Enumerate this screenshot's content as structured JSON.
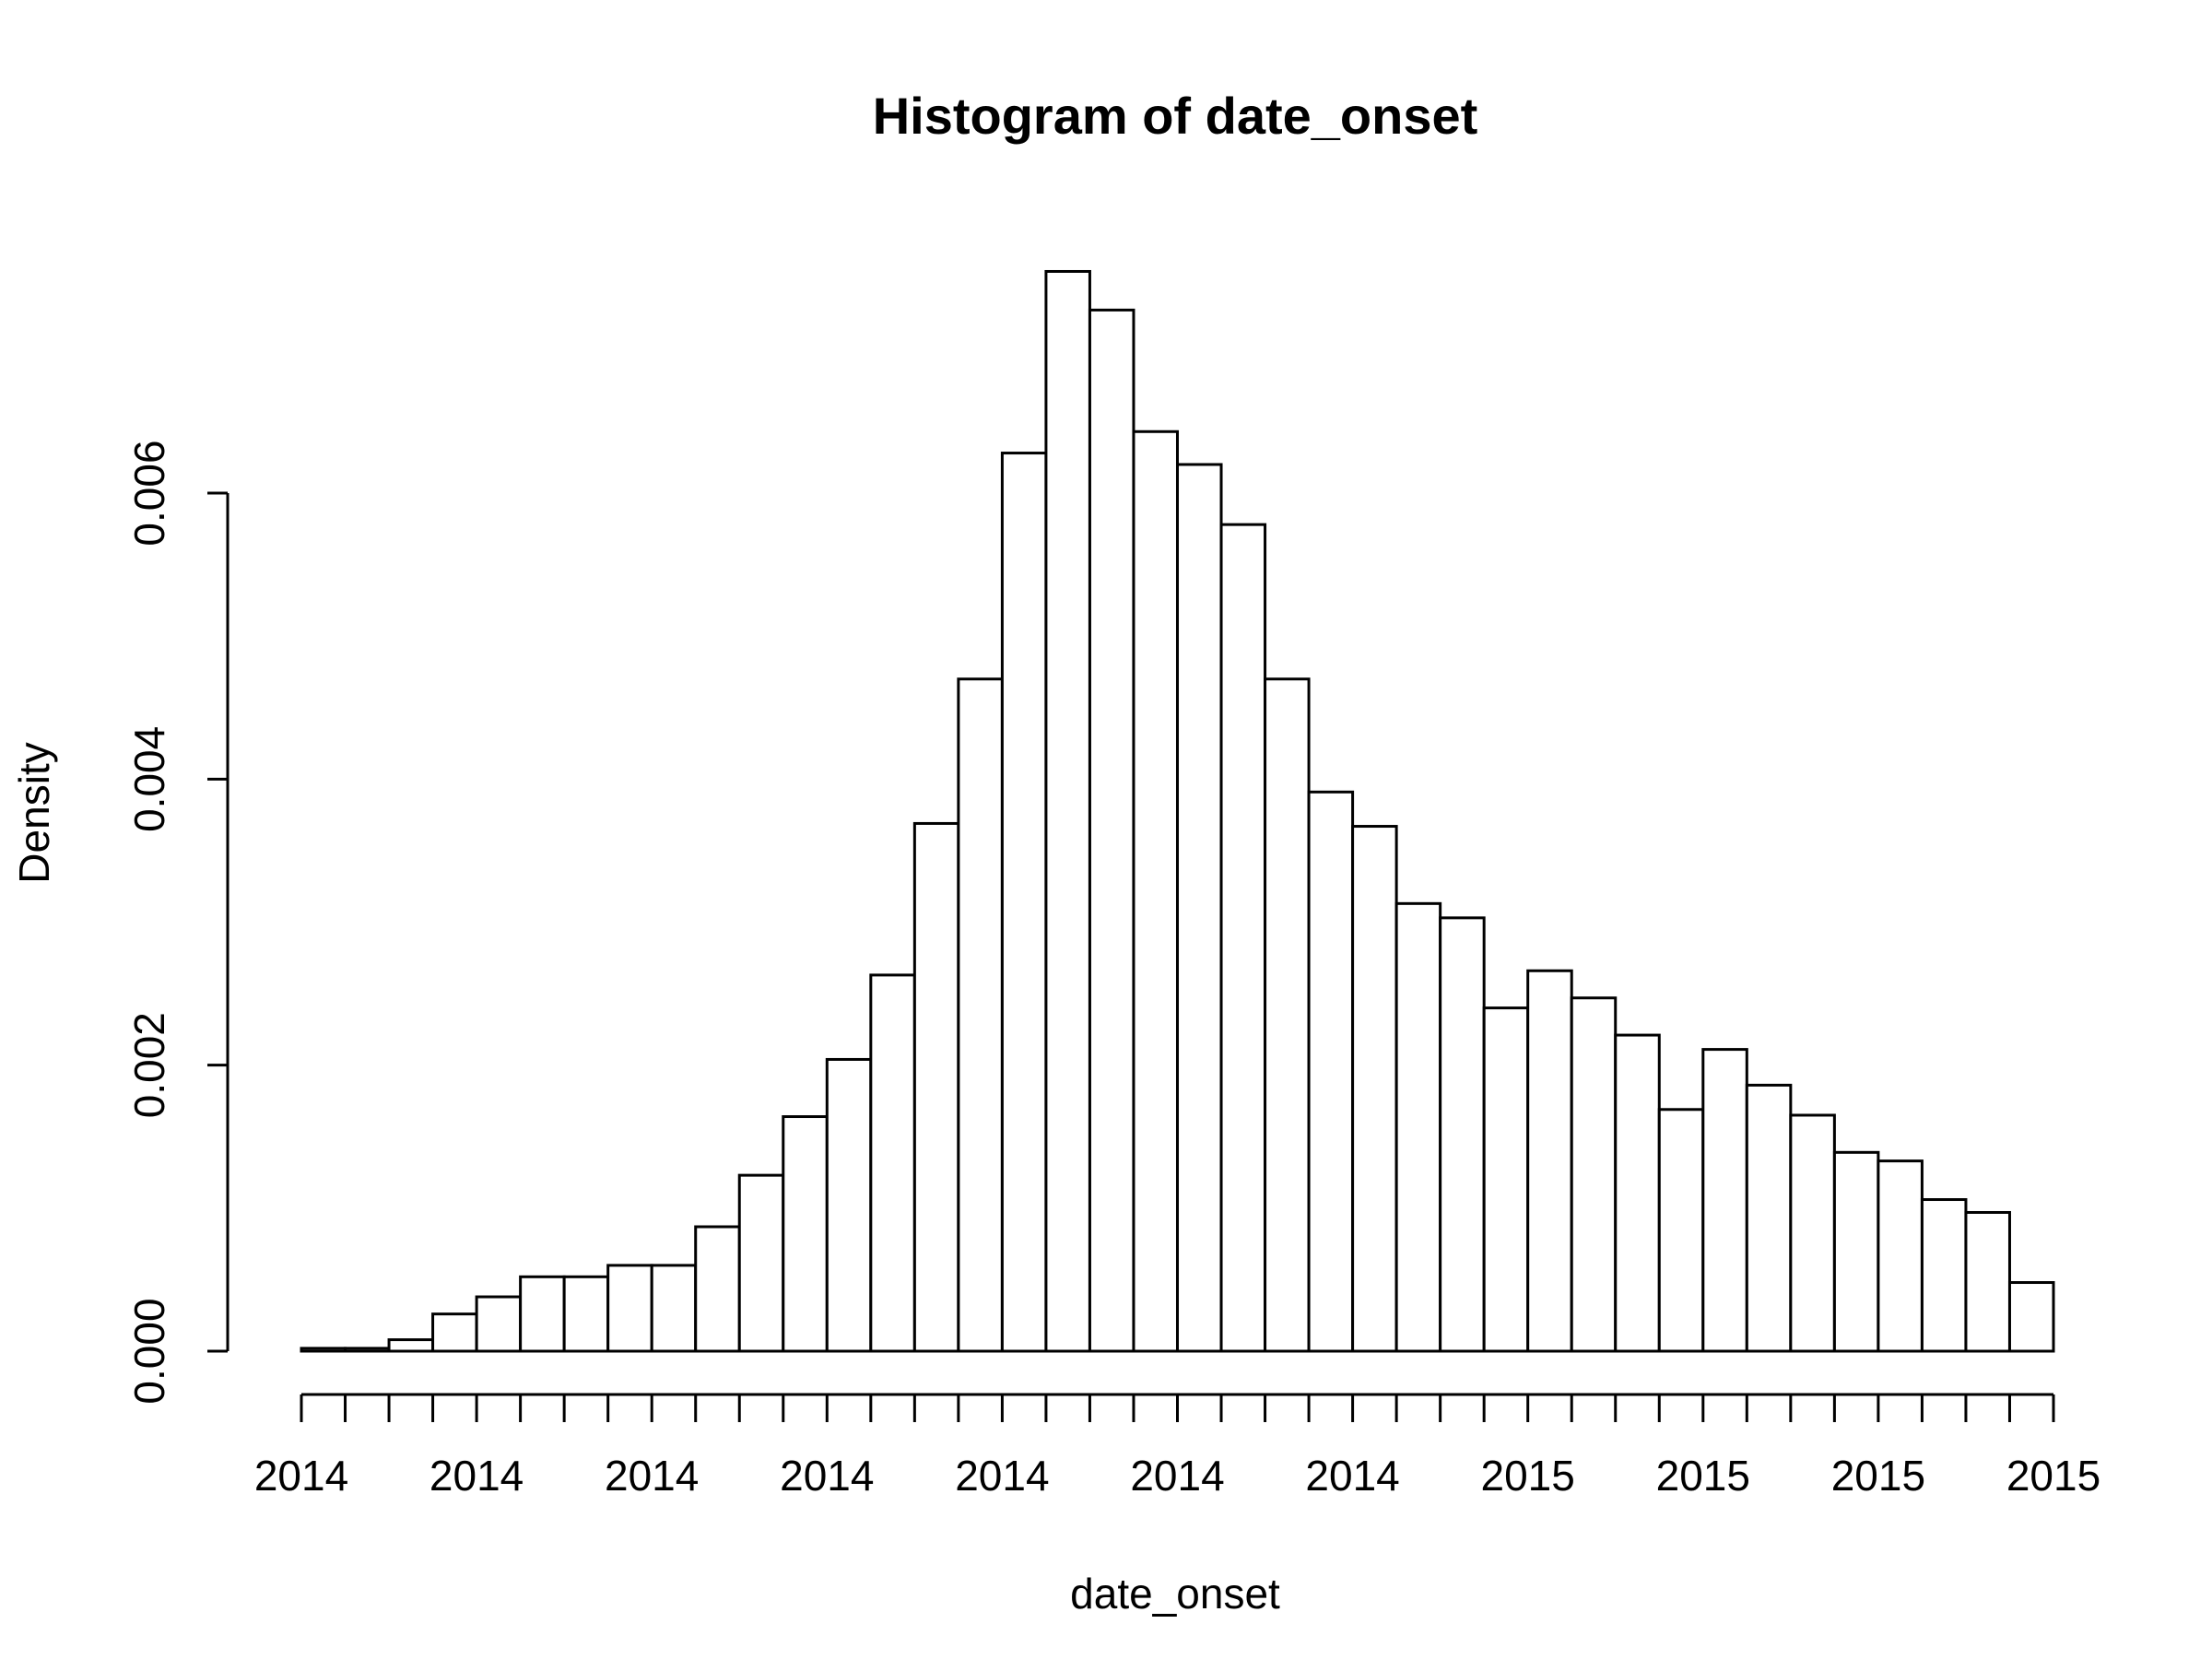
{
  "chart_data": {
    "type": "bar",
    "title": "Histogram of date_onset",
    "xlabel": "date_onset",
    "ylabel": "Density",
    "y_ticks": [
      "0.000",
      "0.002",
      "0.004",
      "0.006"
    ],
    "y_tick_values": [
      0,
      0.002,
      0.004,
      0.006
    ],
    "x_tick_labels": [
      "2014",
      "2014",
      "2014",
      "2014",
      "2014",
      "2014",
      "2014",
      "2015",
      "2015",
      "2015",
      "2015"
    ],
    "n_bins": 40,
    "values": [
      2e-05,
      2e-05,
      8e-05,
      0.00026,
      0.00038,
      0.00052,
      0.00052,
      0.0006,
      0.0006,
      0.00087,
      0.00123,
      0.00164,
      0.00204,
      0.00263,
      0.00369,
      0.0047,
      0.00628,
      0.00755,
      0.00728,
      0.00643,
      0.0062,
      0.00578,
      0.0047,
      0.00391,
      0.00367,
      0.00313,
      0.00303,
      0.0024,
      0.00266,
      0.00247,
      0.00221,
      0.00169,
      0.00211,
      0.00186,
      0.00165,
      0.00139,
      0.00133,
      0.00106,
      0.00097,
      0.00048
    ],
    "ylim": [
      0,
      0.006
    ],
    "grid": false,
    "legend": "none",
    "colors": {
      "bar_fill": "#ffffff",
      "bar_stroke": "#000000",
      "background": "#ffffff"
    }
  }
}
